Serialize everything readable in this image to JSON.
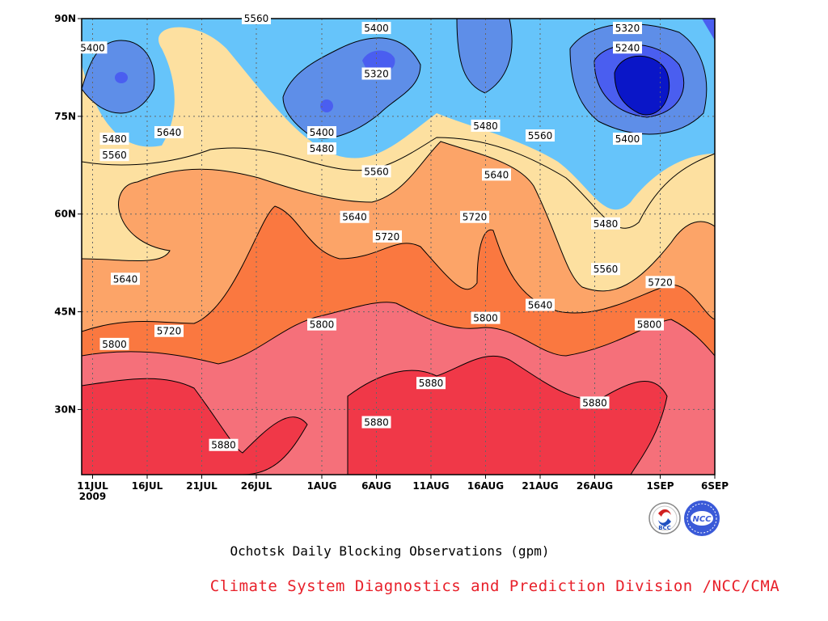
{
  "chart_data": {
    "type": "heatmap",
    "title": "Ochotsk Daily Blocking Observations (gpm)",
    "credit": "Climate System Diagnostics and Prediction Division /NCC/CMA",
    "x_ticks": [
      {
        "date": "2009-07-11",
        "label": "11JUL",
        "sublabel": "2009"
      },
      {
        "date": "2009-07-16",
        "label": "16JUL"
      },
      {
        "date": "2009-07-21",
        "label": "21JUL"
      },
      {
        "date": "2009-07-26",
        "label": "26JUL"
      },
      {
        "date": "2009-08-01",
        "label": "1AUG"
      },
      {
        "date": "2009-08-06",
        "label": "6AUG"
      },
      {
        "date": "2009-08-11",
        "label": "11AUG"
      },
      {
        "date": "2009-08-16",
        "label": "16AUG"
      },
      {
        "date": "2009-08-21",
        "label": "21AUG"
      },
      {
        "date": "2009-08-26",
        "label": "26AUG"
      },
      {
        "date": "2009-09-01",
        "label": "1SEP"
      },
      {
        "date": "2009-09-06",
        "label": "6SEP"
      }
    ],
    "y_ticks": [
      {
        "lat": 30,
        "label": "30N"
      },
      {
        "lat": 45,
        "label": "45N"
      },
      {
        "lat": 60,
        "label": "60N"
      },
      {
        "lat": 75,
        "label": "75N"
      },
      {
        "lat": 90,
        "label": "90N"
      }
    ],
    "xlim": [
      "2009-07-10",
      "2009-09-06"
    ],
    "ylim": [
      20,
      90
    ],
    "grid": true,
    "levels": [
      5240,
      5320,
      5400,
      5480,
      5560,
      5640,
      5720,
      5800,
      5880
    ],
    "fill_colors": [
      "#0a16c8",
      "#4a5ef0",
      "#5e8ee8",
      "#66c4fa",
      "#fafa78",
      "#fde0a0",
      "#fca468",
      "#fa7840",
      "#f5707a",
      "#f03848"
    ],
    "contour_labels": [
      {
        "text": "5400",
        "date": "2009-07-11",
        "lat": 85.5
      },
      {
        "text": "5480",
        "date": "2009-07-13",
        "lat": 71.5
      },
      {
        "text": "5560",
        "date": "2009-07-13",
        "lat": 69
      },
      {
        "text": "5640",
        "date": "2009-07-18",
        "lat": 72.5
      },
      {
        "text": "5640",
        "date": "2009-07-14",
        "lat": 50
      },
      {
        "text": "5720",
        "date": "2009-07-18",
        "lat": 42
      },
      {
        "text": "5800",
        "date": "2009-07-13",
        "lat": 40
      },
      {
        "text": "5880",
        "date": "2009-07-23",
        "lat": 24.5
      },
      {
        "text": "5560",
        "date": "2009-07-26",
        "lat": 90
      },
      {
        "text": "5400",
        "date": "2009-08-06",
        "lat": 88.5
      },
      {
        "text": "5320",
        "date": "2009-08-06",
        "lat": 81.5
      },
      {
        "text": "5400",
        "date": "2009-08-01",
        "lat": 72.5
      },
      {
        "text": "5480",
        "date": "2009-08-01",
        "lat": 70
      },
      {
        "text": "5560",
        "date": "2009-08-06",
        "lat": 66.5
      },
      {
        "text": "5640",
        "date": "2009-08-04",
        "lat": 59.5
      },
      {
        "text": "5720",
        "date": "2009-08-07",
        "lat": 56.5
      },
      {
        "text": "5800",
        "date": "2009-08-01",
        "lat": 43
      },
      {
        "text": "5880",
        "date": "2009-08-11",
        "lat": 34
      },
      {
        "text": "5880",
        "date": "2009-08-06",
        "lat": 28
      },
      {
        "text": "5720",
        "date": "2009-08-15",
        "lat": 59.5
      },
      {
        "text": "5480",
        "date": "2009-08-16",
        "lat": 73.5
      },
      {
        "text": "5640",
        "date": "2009-08-17",
        "lat": 66
      },
      {
        "text": "5800",
        "date": "2009-08-16",
        "lat": 44
      },
      {
        "text": "5560",
        "date": "2009-08-21",
        "lat": 72
      },
      {
        "text": "5640",
        "date": "2009-08-21",
        "lat": 46
      },
      {
        "text": "5880",
        "date": "2009-08-26",
        "lat": 31
      },
      {
        "text": "5480",
        "date": "2009-08-27",
        "lat": 58.5
      },
      {
        "text": "5560",
        "date": "2009-08-27",
        "lat": 51.5
      },
      {
        "text": "5320",
        "date": "2009-08-29",
        "lat": 88.5
      },
      {
        "text": "5240",
        "date": "2009-08-29",
        "lat": 85.5
      },
      {
        "text": "5400",
        "date": "2009-08-29",
        "lat": 71.5
      },
      {
        "text": "5720",
        "date": "2009-09-01",
        "lat": 49.5
      },
      {
        "text": "5800",
        "date": "2009-08-31",
        "lat": 43
      }
    ]
  },
  "logos": {
    "bcc_text": "BCC",
    "ncc_text": "NCC"
  }
}
